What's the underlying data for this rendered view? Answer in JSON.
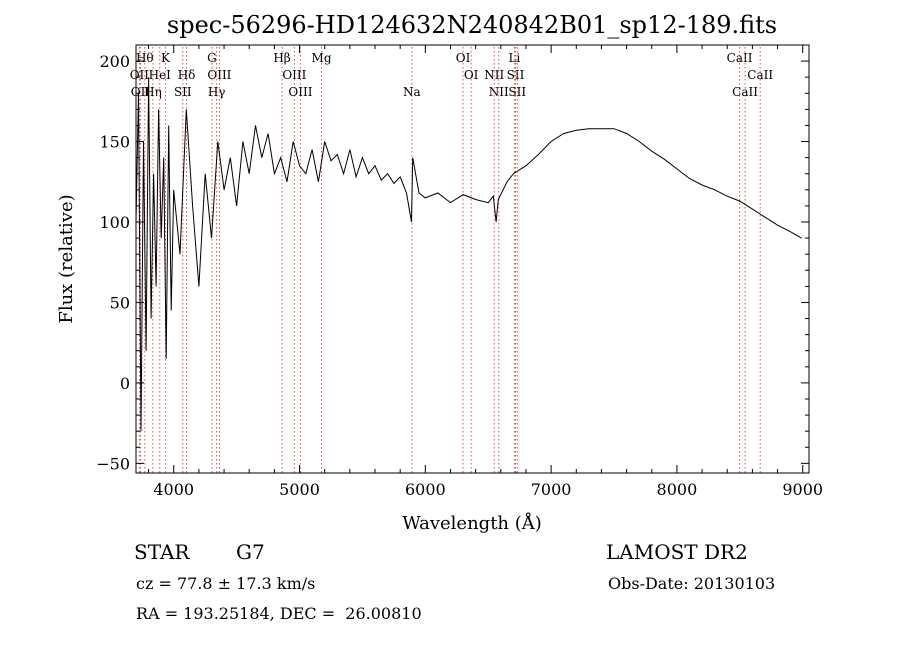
{
  "chart_data": {
    "type": "line",
    "title": "spec-56296-HD124632N240842B01_sp12-189.fits",
    "xlabel": "Wavelength (Å)",
    "ylabel": "Flux (relative)",
    "xlim": [
      3700,
      9050
    ],
    "ylim": [
      -56,
      210
    ],
    "xticks": [
      4000,
      5000,
      6000,
      7000,
      8000,
      9000
    ],
    "xtick_labels": [
      "4000",
      "5000",
      "6000",
      "7000",
      "8000",
      "9000"
    ],
    "yticks": [
      -50,
      0,
      50,
      100,
      150,
      200
    ],
    "ytick_labels": [
      "−50",
      "0",
      "50",
      "100",
      "150",
      "200"
    ],
    "grid": false,
    "series": [
      {
        "x": [
          3700,
          3720,
          3740,
          3760,
          3780,
          3800,
          3820,
          3840,
          3860,
          3880,
          3900,
          3920,
          3940,
          3960,
          3980,
          4000,
          4050,
          4100,
          4150,
          4200,
          4250,
          4300,
          4350,
          4400,
          4450,
          4500,
          4550,
          4600,
          4650,
          4700,
          4750,
          4800,
          4850,
          4900,
          4950,
          5000,
          5050,
          5100,
          5150,
          5200,
          5250,
          5300,
          5350,
          5400,
          5450,
          5500,
          5550,
          5600,
          5650,
          5700,
          5750,
          5800,
          5850,
          5890,
          5900,
          5950,
          6000,
          6100,
          6200,
          6300,
          6400,
          6500,
          6540,
          6563,
          6580,
          6650,
          6700,
          6800,
          6900,
          7000,
          7100,
          7200,
          7300,
          7400,
          7500,
          7600,
          7700,
          7800,
          7900,
          8000,
          8100,
          8200,
          8300,
          8400,
          8500,
          8600,
          8700,
          8800,
          8900,
          8990
        ],
        "y": [
          100,
          180,
          -30,
          150,
          20,
          190,
          40,
          130,
          60,
          170,
          90,
          140,
          15,
          160,
          45,
          120,
          80,
          170,
          110,
          60,
          130,
          90,
          150,
          120,
          140,
          110,
          150,
          130,
          160,
          140,
          155,
          130,
          140,
          125,
          150,
          135,
          130,
          145,
          125,
          150,
          138,
          142,
          130,
          145,
          128,
          140,
          130,
          135,
          126,
          130,
          124,
          128,
          118,
          100,
          140,
          118,
          115,
          118,
          112,
          117,
          114,
          112,
          116,
          100,
          114,
          125,
          130,
          135,
          142,
          150,
          155,
          157,
          158,
          158,
          158,
          155,
          150,
          144,
          139,
          133,
          127,
          123,
          120,
          116,
          113,
          108,
          103,
          98,
          94,
          90
        ]
      }
    ],
    "line_markers": [
      {
        "w": 3727,
        "label": "OII",
        "row": 1
      },
      {
        "w": 3735,
        "label": "OII",
        "row": 2
      },
      {
        "w": 3770,
        "label": "Hθ",
        "row": 0
      },
      {
        "w": 3835,
        "label": "Hη",
        "row": 2
      },
      {
        "w": 3889,
        "label": "HeI",
        "row": 1
      },
      {
        "w": 3934,
        "label": "K",
        "row": 0
      },
      {
        "w": 4102,
        "label": "Hδ",
        "row": 1
      },
      {
        "w": 4072,
        "label": "SII",
        "row": 2
      },
      {
        "w": 4304,
        "label": "G",
        "row": 0
      },
      {
        "w": 4363,
        "label": "OIII",
        "row": 1
      },
      {
        "w": 4341,
        "label": "Hγ",
        "row": 2
      },
      {
        "w": 4861,
        "label": "Hβ",
        "row": 0
      },
      {
        "w": 4959,
        "label": "OIII",
        "row": 1
      },
      {
        "w": 5007,
        "label": "OIII",
        "row": 2
      },
      {
        "w": 5175,
        "label": "Mg",
        "row": 0
      },
      {
        "w": 5893,
        "label": "Na",
        "row": 2
      },
      {
        "w": 6300,
        "label": "OI",
        "row": 0
      },
      {
        "w": 6364,
        "label": "OI",
        "row": 1
      },
      {
        "w": 6548,
        "label": "NII",
        "row": 1
      },
      {
        "w": 6584,
        "label": "NII",
        "row": 2
      },
      {
        "w": 6708,
        "label": "Li",
        "row": 0
      },
      {
        "w": 6717,
        "label": "SII",
        "row": 1
      },
      {
        "w": 6731,
        "label": "SII",
        "row": 2
      },
      {
        "w": 8498,
        "label": "CaII",
        "row": 0
      },
      {
        "w": 8542,
        "label": "CaII",
        "row": 2
      },
      {
        "w": 8662,
        "label": "CaII",
        "row": 1
      }
    ]
  },
  "info": {
    "object_class": "STAR",
    "subclass": "G7",
    "survey": "LAMOST DR2",
    "cz": "cz = 77.8 ± 17.3 km/s",
    "obs_date": "Obs-Date: 20130103",
    "coords": "RA = 193.25184, DEC =  26.00810"
  }
}
